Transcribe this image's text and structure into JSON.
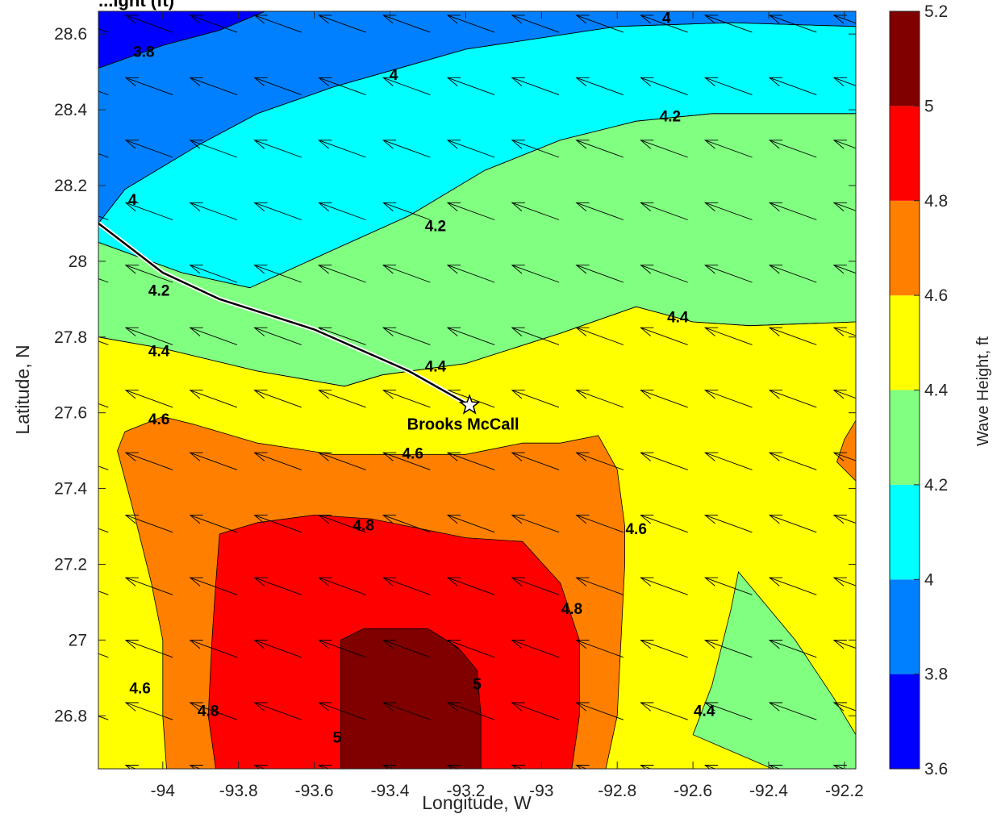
{
  "chart_data": {
    "type": "contour",
    "title": "...ight (ft)",
    "xlabel": "Longitude, W",
    "ylabel": "Latitude, N",
    "xlim": [
      -94.17,
      -92.17
    ],
    "ylim": [
      26.66,
      28.66
    ],
    "xticks": [
      "-94",
      "-93.8",
      "-93.6",
      "-93.4",
      "-93.2",
      "-93",
      "-92.8",
      "-92.6",
      "-92.4",
      "-92.2"
    ],
    "xtick_values": [
      -94,
      -93.8,
      -93.6,
      -93.4,
      -93.2,
      -93,
      -92.8,
      -92.6,
      -92.4,
      -92.2
    ],
    "yticks": [
      "28.6",
      "28.4",
      "28.2",
      "28",
      "27.8",
      "27.6",
      "27.4",
      "27.2",
      "27",
      "26.8"
    ],
    "ytick_values": [
      28.6,
      28.4,
      28.2,
      28,
      27.8,
      27.6,
      27.4,
      27.2,
      27,
      26.8
    ],
    "colorbar": {
      "label": "Wave Height, ft",
      "ticks": [
        "3.6",
        "3.8",
        "4",
        "4.2",
        "4.4",
        "4.6",
        "4.8",
        "5",
        "5.2"
      ],
      "levels": [
        3.6,
        3.8,
        4.0,
        4.2,
        4.4,
        4.6,
        4.8,
        5.0,
        5.2
      ],
      "colors": [
        "#0000ff",
        "#0080ff",
        "#00ffff",
        "#80ff80",
        "#ffff00",
        "#ff8000",
        "#ff0000",
        "#800000"
      ]
    },
    "contour_levels": [
      3.8,
      4.0,
      4.2,
      4.4,
      4.6,
      4.8,
      5.0
    ],
    "regions": [
      {
        "level_range": [
          3.6,
          3.8
        ],
        "color": "#0000ff",
        "points": [
          [
            -94.17,
            28.66
          ],
          [
            -93.73,
            28.66
          ],
          [
            -93.85,
            28.61
          ],
          [
            -94.0,
            28.57
          ],
          [
            -94.17,
            28.51
          ]
        ]
      },
      {
        "level_range": [
          3.8,
          4.0
        ],
        "color": "#0080ff",
        "points": [
          [
            -93.73,
            28.66
          ],
          [
            -92.17,
            28.66
          ],
          [
            -92.17,
            28.62
          ],
          [
            -92.5,
            28.63
          ],
          [
            -92.8,
            28.62
          ],
          [
            -93.2,
            28.56
          ],
          [
            -93.55,
            28.46
          ],
          [
            -93.75,
            28.39
          ],
          [
            -93.9,
            28.31
          ],
          [
            -94.1,
            28.19
          ],
          [
            -94.17,
            28.1
          ],
          [
            -94.17,
            28.51
          ],
          [
            -94.0,
            28.57
          ],
          [
            -93.85,
            28.61
          ]
        ]
      },
      {
        "level_range": [
          4.0,
          4.2
        ],
        "color": "#00ffff",
        "points": [
          [
            -94.17,
            28.1
          ],
          [
            -94.1,
            28.19
          ],
          [
            -93.9,
            28.31
          ],
          [
            -93.75,
            28.39
          ],
          [
            -93.55,
            28.46
          ],
          [
            -93.2,
            28.56
          ],
          [
            -92.8,
            28.62
          ],
          [
            -92.5,
            28.63
          ],
          [
            -92.17,
            28.62
          ],
          [
            -92.17,
            28.39
          ],
          [
            -92.55,
            28.39
          ],
          [
            -92.75,
            28.37
          ],
          [
            -92.95,
            28.32
          ],
          [
            -93.15,
            28.24
          ],
          [
            -93.35,
            28.12
          ],
          [
            -93.55,
            28.03
          ],
          [
            -93.77,
            27.93
          ],
          [
            -93.95,
            27.97
          ],
          [
            -94.17,
            28.05
          ]
        ]
      },
      {
        "level_range": [
          4.2,
          4.4
        ],
        "color": "#80ff80",
        "points": [
          [
            -94.17,
            28.05
          ],
          [
            -93.95,
            27.97
          ],
          [
            -93.77,
            27.93
          ],
          [
            -93.55,
            28.03
          ],
          [
            -93.35,
            28.12
          ],
          [
            -93.15,
            28.24
          ],
          [
            -92.95,
            28.32
          ],
          [
            -92.75,
            28.37
          ],
          [
            -92.55,
            28.39
          ],
          [
            -92.17,
            28.39
          ],
          [
            -92.17,
            27.84
          ],
          [
            -92.45,
            27.83
          ],
          [
            -92.6,
            27.84
          ],
          [
            -92.75,
            27.88
          ],
          [
            -92.95,
            27.81
          ],
          [
            -93.2,
            27.73
          ],
          [
            -93.42,
            27.7
          ],
          [
            -93.52,
            27.67
          ],
          [
            -93.75,
            27.71
          ],
          [
            -94.0,
            27.77
          ],
          [
            -94.17,
            27.8
          ]
        ]
      },
      {
        "level_range": [
          4.4,
          4.6
        ],
        "color": "#ffff00",
        "points": [
          [
            -94.17,
            27.8
          ],
          [
            -94.0,
            27.77
          ],
          [
            -93.75,
            27.71
          ],
          [
            -93.52,
            27.67
          ],
          [
            -93.42,
            27.7
          ],
          [
            -93.2,
            27.73
          ],
          [
            -92.95,
            27.81
          ],
          [
            -92.75,
            27.88
          ],
          [
            -92.6,
            27.84
          ],
          [
            -92.45,
            27.83
          ],
          [
            -92.17,
            27.84
          ],
          [
            -92.17,
            26.66
          ],
          [
            -94.17,
            26.66
          ]
        ]
      },
      {
        "level_range": [
          4.2,
          4.4
        ],
        "color": "#80ff80",
        "points": [
          [
            -92.39,
            26.66
          ],
          [
            -92.17,
            26.66
          ],
          [
            -92.17,
            26.75
          ],
          [
            -92.23,
            26.85
          ],
          [
            -92.33,
            27.0
          ],
          [
            -92.43,
            27.12
          ],
          [
            -92.48,
            27.18
          ],
          [
            -92.5,
            27.08
          ],
          [
            -92.52,
            27.0
          ],
          [
            -92.55,
            26.88
          ],
          [
            -92.6,
            26.75
          ]
        ]
      },
      {
        "level_range": [
          4.6,
          4.8
        ],
        "color": "#ff8000",
        "points": [
          [
            -94.12,
            27.5
          ],
          [
            -94.08,
            27.35
          ],
          [
            -94.03,
            27.15
          ],
          [
            -94.0,
            27.0
          ],
          [
            -94.0,
            26.8
          ],
          [
            -93.99,
            26.66
          ],
          [
            -92.83,
            26.66
          ],
          [
            -92.8,
            26.8
          ],
          [
            -92.79,
            27.0
          ],
          [
            -92.78,
            27.2
          ],
          [
            -92.78,
            27.3
          ],
          [
            -92.8,
            27.45
          ],
          [
            -92.85,
            27.54
          ],
          [
            -92.95,
            27.52
          ],
          [
            -93.05,
            27.52
          ],
          [
            -93.2,
            27.49
          ],
          [
            -93.35,
            27.49
          ],
          [
            -93.55,
            27.49
          ],
          [
            -93.75,
            27.52
          ],
          [
            -93.92,
            27.57
          ],
          [
            -94.0,
            27.59
          ],
          [
            -94.1,
            27.55
          ]
        ]
      },
      {
        "level_range": [
          4.6,
          4.8
        ],
        "color": "#ff8000",
        "points": [
          [
            -92.17,
            27.58
          ],
          [
            -92.17,
            27.42
          ],
          [
            -92.22,
            27.47
          ],
          [
            -92.2,
            27.53
          ]
        ]
      },
      {
        "level_range": [
          4.8,
          5.0
        ],
        "color": "#ff0000",
        "points": [
          [
            -93.85,
            27.28
          ],
          [
            -93.75,
            27.31
          ],
          [
            -93.6,
            27.33
          ],
          [
            -93.45,
            27.32
          ],
          [
            -93.35,
            27.3
          ],
          [
            -93.2,
            27.27
          ],
          [
            -93.05,
            27.26
          ],
          [
            -92.95,
            27.15
          ],
          [
            -92.9,
            27.0
          ],
          [
            -92.9,
            26.8
          ],
          [
            -92.92,
            26.66
          ],
          [
            -93.86,
            26.66
          ],
          [
            -93.88,
            26.8
          ],
          [
            -93.87,
            27.0
          ],
          [
            -93.86,
            27.15
          ]
        ]
      },
      {
        "level_range": [
          5.0,
          5.2
        ],
        "color": "#800000",
        "points": [
          [
            -93.53,
            27.0
          ],
          [
            -93.47,
            27.03
          ],
          [
            -93.3,
            27.03
          ],
          [
            -93.22,
            26.98
          ],
          [
            -93.17,
            26.92
          ],
          [
            -93.16,
            26.8
          ],
          [
            -93.16,
            26.66
          ],
          [
            -93.53,
            26.66
          ],
          [
            -93.53,
            26.8
          ]
        ]
      }
    ],
    "contour_labels": [
      {
        "text": "3.8",
        "x": -94.05,
        "y": 28.55
      },
      {
        "text": "4",
        "x": -93.39,
        "y": 28.49
      },
      {
        "text": "4",
        "x": -92.67,
        "y": 28.64
      },
      {
        "text": "4",
        "x": -94.08,
        "y": 28.16
      },
      {
        "text": "4.2",
        "x": -92.66,
        "y": 28.38
      },
      {
        "text": "4.2",
        "x": -93.28,
        "y": 28.09
      },
      {
        "text": "4.2",
        "x": -94.01,
        "y": 27.92
      },
      {
        "text": "4.4",
        "x": -92.64,
        "y": 27.85
      },
      {
        "text": "4.4",
        "x": -94.01,
        "y": 27.76
      },
      {
        "text": "4.4",
        "x": -93.28,
        "y": 27.72
      },
      {
        "text": "4.6",
        "x": -94.01,
        "y": 27.58
      },
      {
        "text": "4.6",
        "x": -93.34,
        "y": 27.49
      },
      {
        "text": "4.6",
        "x": -92.75,
        "y": 27.29
      },
      {
        "text": "4.6",
        "x": -94.06,
        "y": 26.87
      },
      {
        "text": "4.8",
        "x": -93.47,
        "y": 27.3
      },
      {
        "text": "4.8",
        "x": -92.92,
        "y": 27.08
      },
      {
        "text": "4.8",
        "x": -93.88,
        "y": 26.81
      },
      {
        "text": "5",
        "x": -93.17,
        "y": 26.88
      },
      {
        "text": "5",
        "x": -93.54,
        "y": 26.74
      },
      {
        "text": "4.4",
        "x": -92.57,
        "y": 26.81
      }
    ],
    "track": [
      [
        -94.17,
        28.1
      ],
      [
        -94.0,
        27.97
      ],
      [
        -93.85,
        27.9
      ],
      [
        -93.6,
        27.82
      ],
      [
        -93.35,
        27.71
      ],
      [
        -93.19,
        27.62
      ]
    ],
    "station": {
      "name": "Brooks McCall",
      "x": -93.19,
      "y": 27.62
    },
    "vector_field": {
      "direction_deg_from_east": 160,
      "grid_x_spacing": 0.17,
      "grid_y_spacing": 0.165
    }
  }
}
